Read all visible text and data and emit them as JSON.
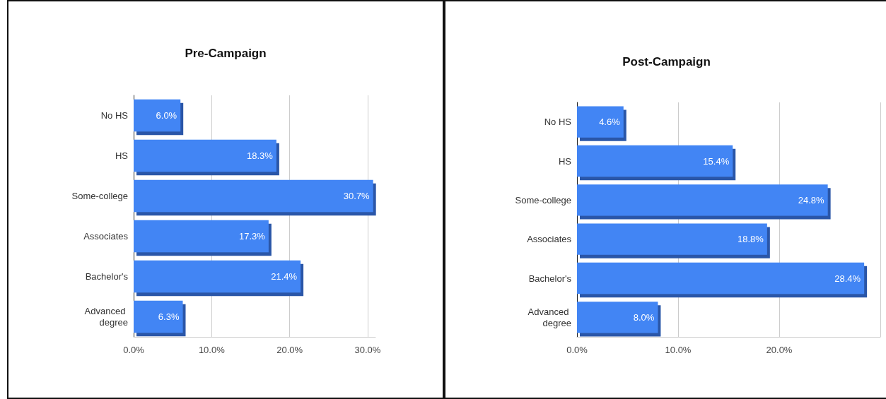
{
  "chart_data": [
    {
      "type": "bar",
      "title": "Pre-Campaign",
      "orientation": "horizontal",
      "categories": [
        "No HS",
        "HS",
        "Some-college",
        "Associates",
        "Bachelor's",
        "Advanced degree"
      ],
      "values": [
        6.0,
        18.3,
        30.7,
        17.3,
        21.4,
        6.3
      ],
      "value_labels": [
        "6.0%",
        "18.3%",
        "30.7%",
        "17.3%",
        "21.4%",
        "6.3%"
      ],
      "color": "#4285f4",
      "xlim": [
        0,
        31
      ],
      "xticks": [
        {
          "value": 0,
          "label": "0.0%"
        },
        {
          "value": 10,
          "label": "10.0%"
        },
        {
          "value": 20,
          "label": "20.0%"
        },
        {
          "value": 30,
          "label": "30.0%"
        }
      ],
      "grid": "x"
    },
    {
      "type": "bar",
      "title": "Post-Campaign",
      "orientation": "horizontal",
      "categories": [
        "No HS",
        "HS",
        "Some-college",
        "Associates",
        "Bachelor's",
        "Advanced degree"
      ],
      "values": [
        4.6,
        15.4,
        24.8,
        18.8,
        28.4,
        8.0
      ],
      "value_labels": [
        "4.6%",
        "15.4%",
        "24.8%",
        "18.8%",
        "28.4%",
        "8.0%"
      ],
      "color": "#4285f4",
      "xlim": [
        0,
        30
      ],
      "xticks": [
        {
          "value": 0,
          "label": "0.0%"
        },
        {
          "value": 10,
          "label": "10.0%"
        },
        {
          "value": 20,
          "label": "20.0%"
        },
        {
          "value": 30,
          "label": null
        }
      ],
      "grid": "x"
    }
  ]
}
